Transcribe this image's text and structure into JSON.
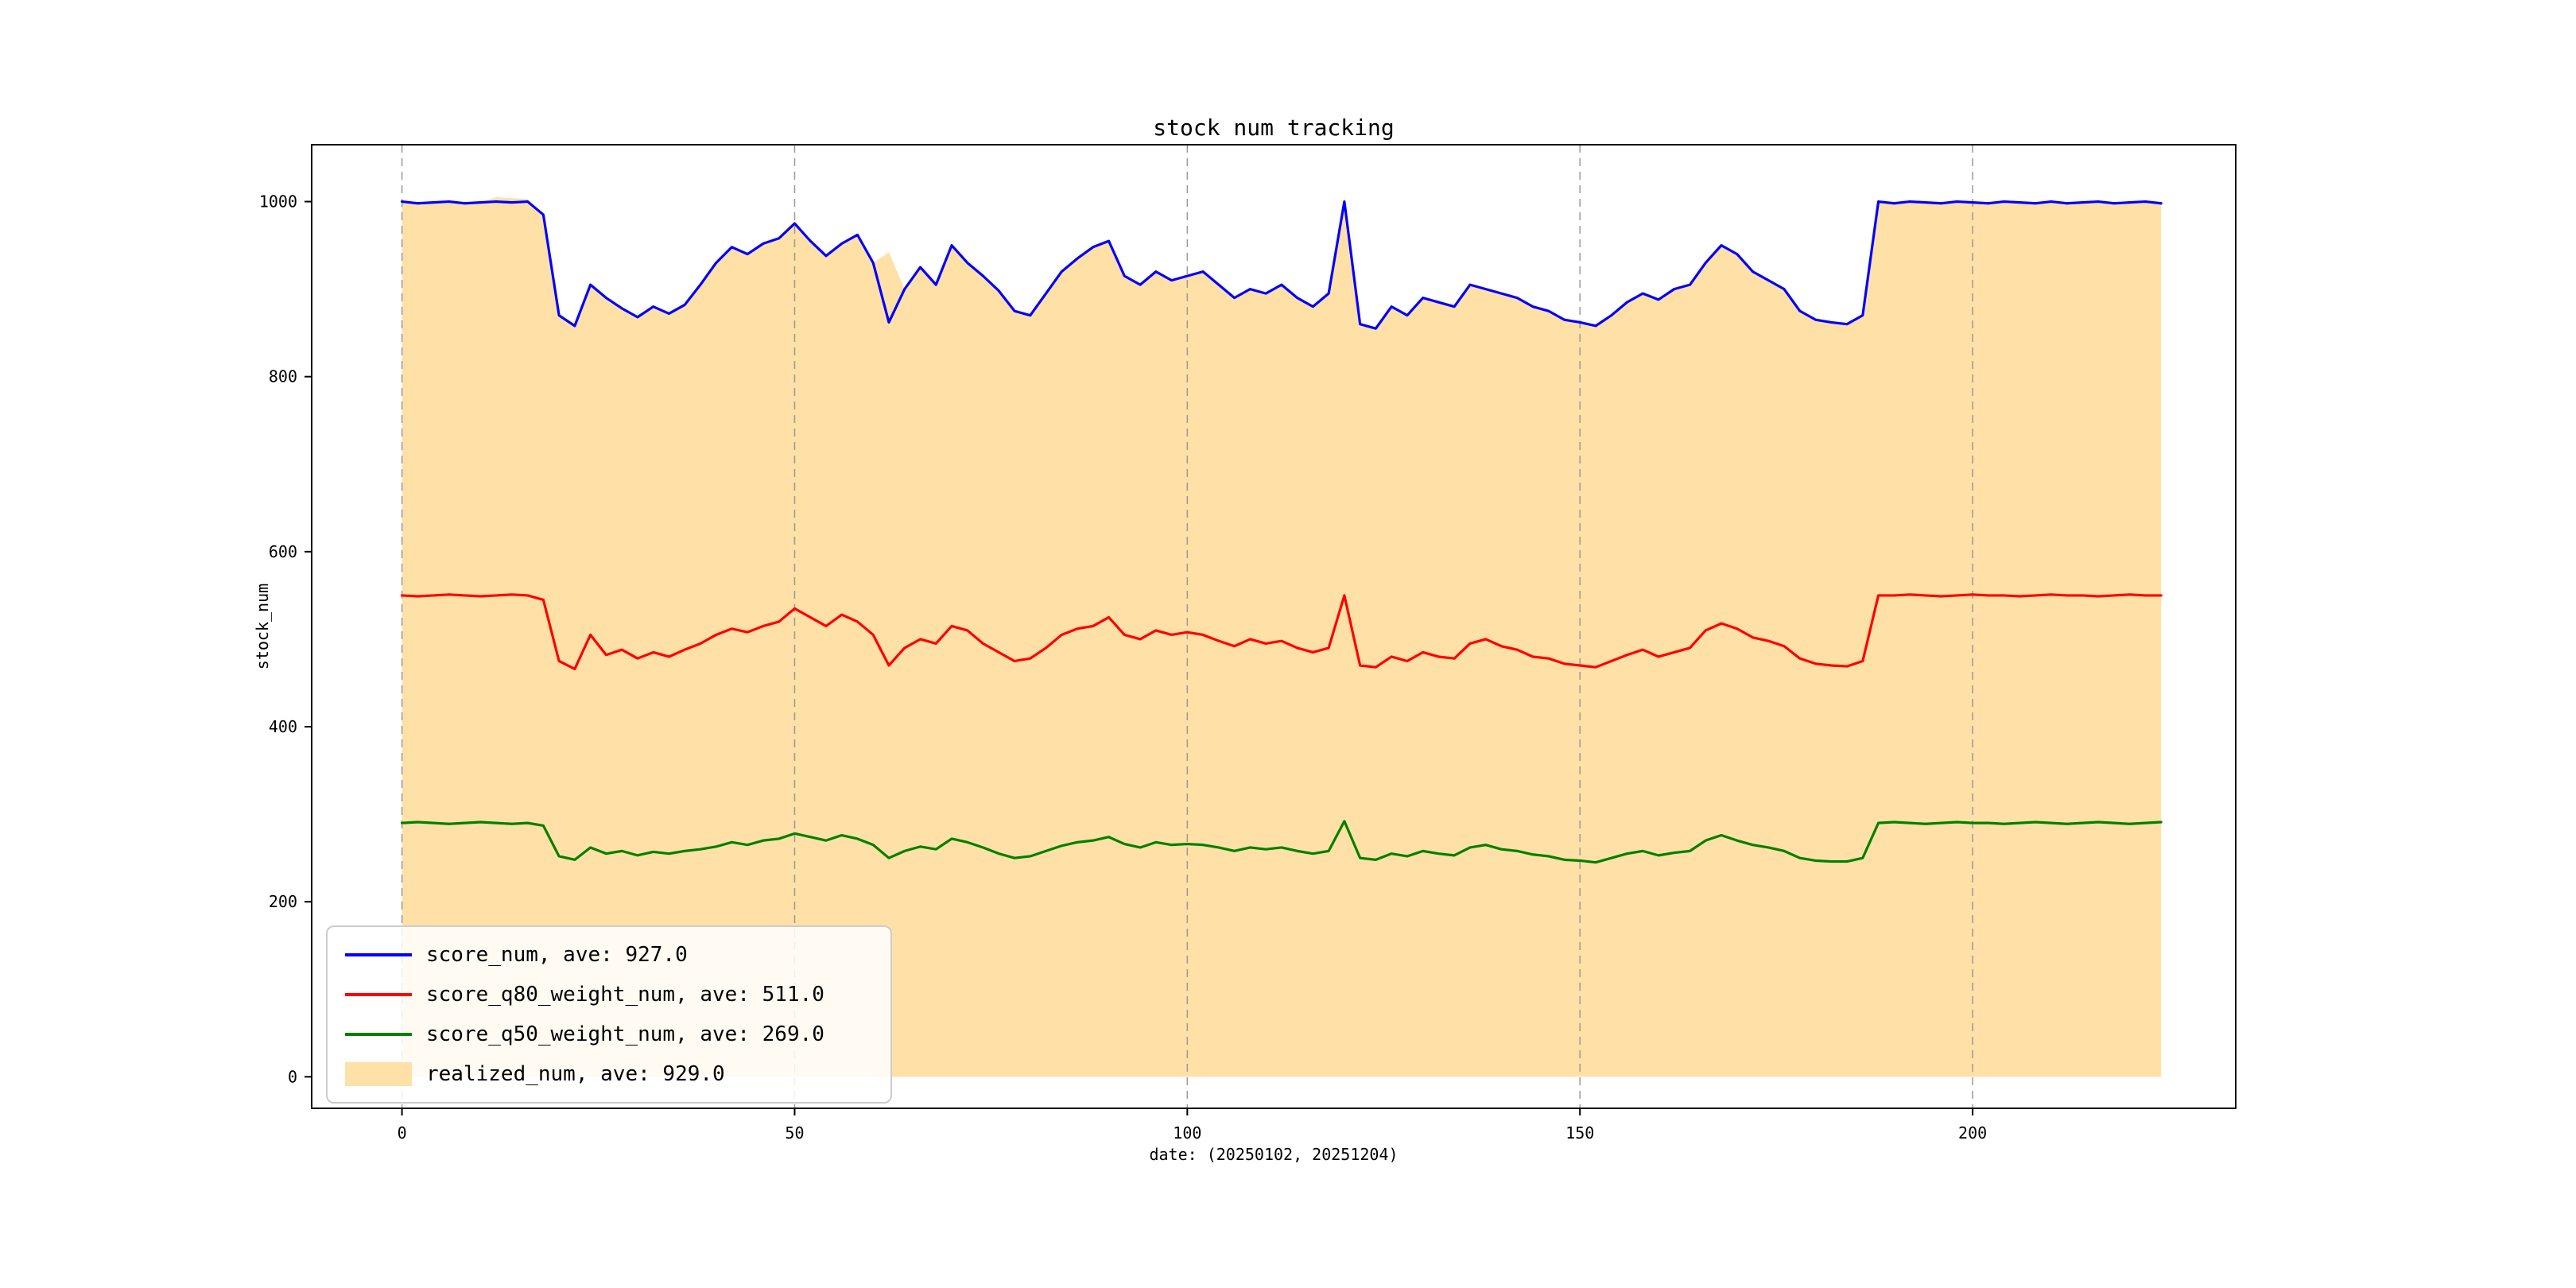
{
  "figure": {
    "background": "#ffffff",
    "spine_color": "#000000"
  },
  "chart_data": {
    "type": "line",
    "title": "stock num tracking",
    "xlabel": "date: (20250102, 20251204)",
    "ylabel": "stock_num",
    "xlim": [
      -11.5,
      233.5
    ],
    "ylim": [
      -36,
      1065
    ],
    "xticks": [
      0,
      50,
      100,
      150,
      200
    ],
    "yticks": [
      0,
      200,
      400,
      600,
      800,
      1000
    ],
    "grid": {
      "vertical_dashed_at_xticks": true,
      "color": "#9a9a9a"
    },
    "legend_position": "lower left",
    "x": {
      "start": 0,
      "step": 2,
      "count": 113
    },
    "series": [
      {
        "name": "score_num",
        "type": "line",
        "color": "#0000ff",
        "average": 927.0,
        "legend_label": "score_num, ave: 927.0",
        "values": [
          1000,
          998,
          999,
          1000,
          998,
          999,
          1000,
          999,
          1000,
          985,
          870,
          858,
          905,
          890,
          878,
          868,
          880,
          872,
          882,
          905,
          930,
          948,
          940,
          952,
          958,
          975,
          955,
          938,
          952,
          962,
          930,
          862,
          900,
          925,
          905,
          950,
          930,
          915,
          898,
          875,
          870,
          895,
          920,
          935,
          948,
          955,
          915,
          905,
          920,
          910,
          915,
          920,
          905,
          890,
          900,
          895,
          905,
          890,
          880,
          895,
          1000,
          860,
          855,
          880,
          870,
          890,
          885,
          880,
          905,
          900,
          895,
          890,
          880,
          875,
          865,
          862,
          858,
          870,
          885,
          895,
          888,
          900,
          905,
          930,
          950,
          940,
          920,
          910,
          900,
          875,
          865,
          862,
          860,
          870,
          1000,
          998,
          1000,
          999,
          998,
          1000,
          999,
          998,
          1000,
          999,
          998,
          1000,
          998,
          999,
          1000,
          998,
          999,
          1000,
          998
        ]
      },
      {
        "name": "score_q80_weight_num",
        "type": "line",
        "color": "#ff0000",
        "average": 511.0,
        "legend_label": "score_q80_weight_num, ave: 511.0",
        "values": [
          550,
          549,
          550,
          551,
          550,
          549,
          550,
          551,
          550,
          545,
          475,
          466,
          505,
          482,
          488,
          478,
          485,
          480,
          488,
          495,
          505,
          512,
          508,
          515,
          520,
          535,
          525,
          515,
          528,
          520,
          505,
          470,
          490,
          500,
          495,
          515,
          510,
          495,
          485,
          475,
          478,
          490,
          505,
          512,
          515,
          525,
          505,
          500,
          510,
          505,
          508,
          505,
          498,
          492,
          500,
          495,
          498,
          490,
          485,
          490,
          550,
          470,
          468,
          480,
          475,
          485,
          480,
          478,
          495,
          500,
          492,
          488,
          480,
          478,
          472,
          470,
          468,
          475,
          482,
          488,
          480,
          485,
          490,
          510,
          518,
          512,
          502,
          498,
          492,
          478,
          472,
          470,
          469,
          475,
          550,
          550,
          551,
          550,
          549,
          550,
          551,
          550,
          550,
          549,
          550,
          551,
          550,
          550,
          549,
          550,
          551,
          550,
          550
        ]
      },
      {
        "name": "score_q50_weight_num",
        "type": "line",
        "color": "#008000",
        "average": 269.0,
        "legend_label": "score_q50_weight_num, ave: 269.0",
        "values": [
          290,
          291,
          290,
          289,
          290,
          291,
          290,
          289,
          290,
          287,
          252,
          248,
          262,
          255,
          258,
          253,
          257,
          255,
          258,
          260,
          263,
          268,
          265,
          270,
          272,
          278,
          274,
          270,
          276,
          272,
          265,
          250,
          258,
          263,
          260,
          272,
          268,
          262,
          255,
          250,
          252,
          258,
          264,
          268,
          270,
          274,
          266,
          262,
          268,
          265,
          266,
          265,
          262,
          258,
          262,
          260,
          262,
          258,
          255,
          258,
          292,
          250,
          248,
          255,
          252,
          258,
          255,
          253,
          262,
          265,
          260,
          258,
          254,
          252,
          248,
          247,
          245,
          250,
          255,
          258,
          253,
          256,
          258,
          270,
          276,
          270,
          265,
          262,
          258,
          250,
          247,
          246,
          246,
          250,
          290,
          291,
          290,
          289,
          290,
          291,
          290,
          290,
          289,
          290,
          291,
          290,
          289,
          290,
          291,
          290,
          289,
          290,
          291
        ]
      },
      {
        "name": "realized_num",
        "type": "area",
        "color": "#ffe0a6",
        "average": 929.0,
        "legend_label": "realized_num, ave: 929.0",
        "values": [
          1000,
          998,
          999,
          1000,
          998,
          999,
          1005,
          1004,
          1003,
          985,
          870,
          858,
          905,
          890,
          878,
          868,
          880,
          872,
          882,
          905,
          930,
          948,
          940,
          952,
          958,
          975,
          955,
          938,
          952,
          962,
          930,
          942,
          900,
          925,
          905,
          950,
          930,
          915,
          898,
          875,
          870,
          895,
          920,
          935,
          948,
          955,
          915,
          905,
          920,
          910,
          915,
          920,
          905,
          890,
          900,
          895,
          905,
          890,
          880,
          895,
          1005,
          860,
          855,
          880,
          870,
          890,
          885,
          880,
          905,
          900,
          895,
          890,
          880,
          875,
          865,
          862,
          858,
          870,
          885,
          895,
          888,
          900,
          905,
          930,
          950,
          940,
          920,
          910,
          900,
          875,
          865,
          862,
          860,
          870,
          1000,
          998,
          1000,
          999,
          998,
          1000,
          999,
          998,
          1000,
          999,
          998,
          1000,
          998,
          999,
          1000,
          998,
          999,
          1000,
          998
        ]
      }
    ]
  }
}
